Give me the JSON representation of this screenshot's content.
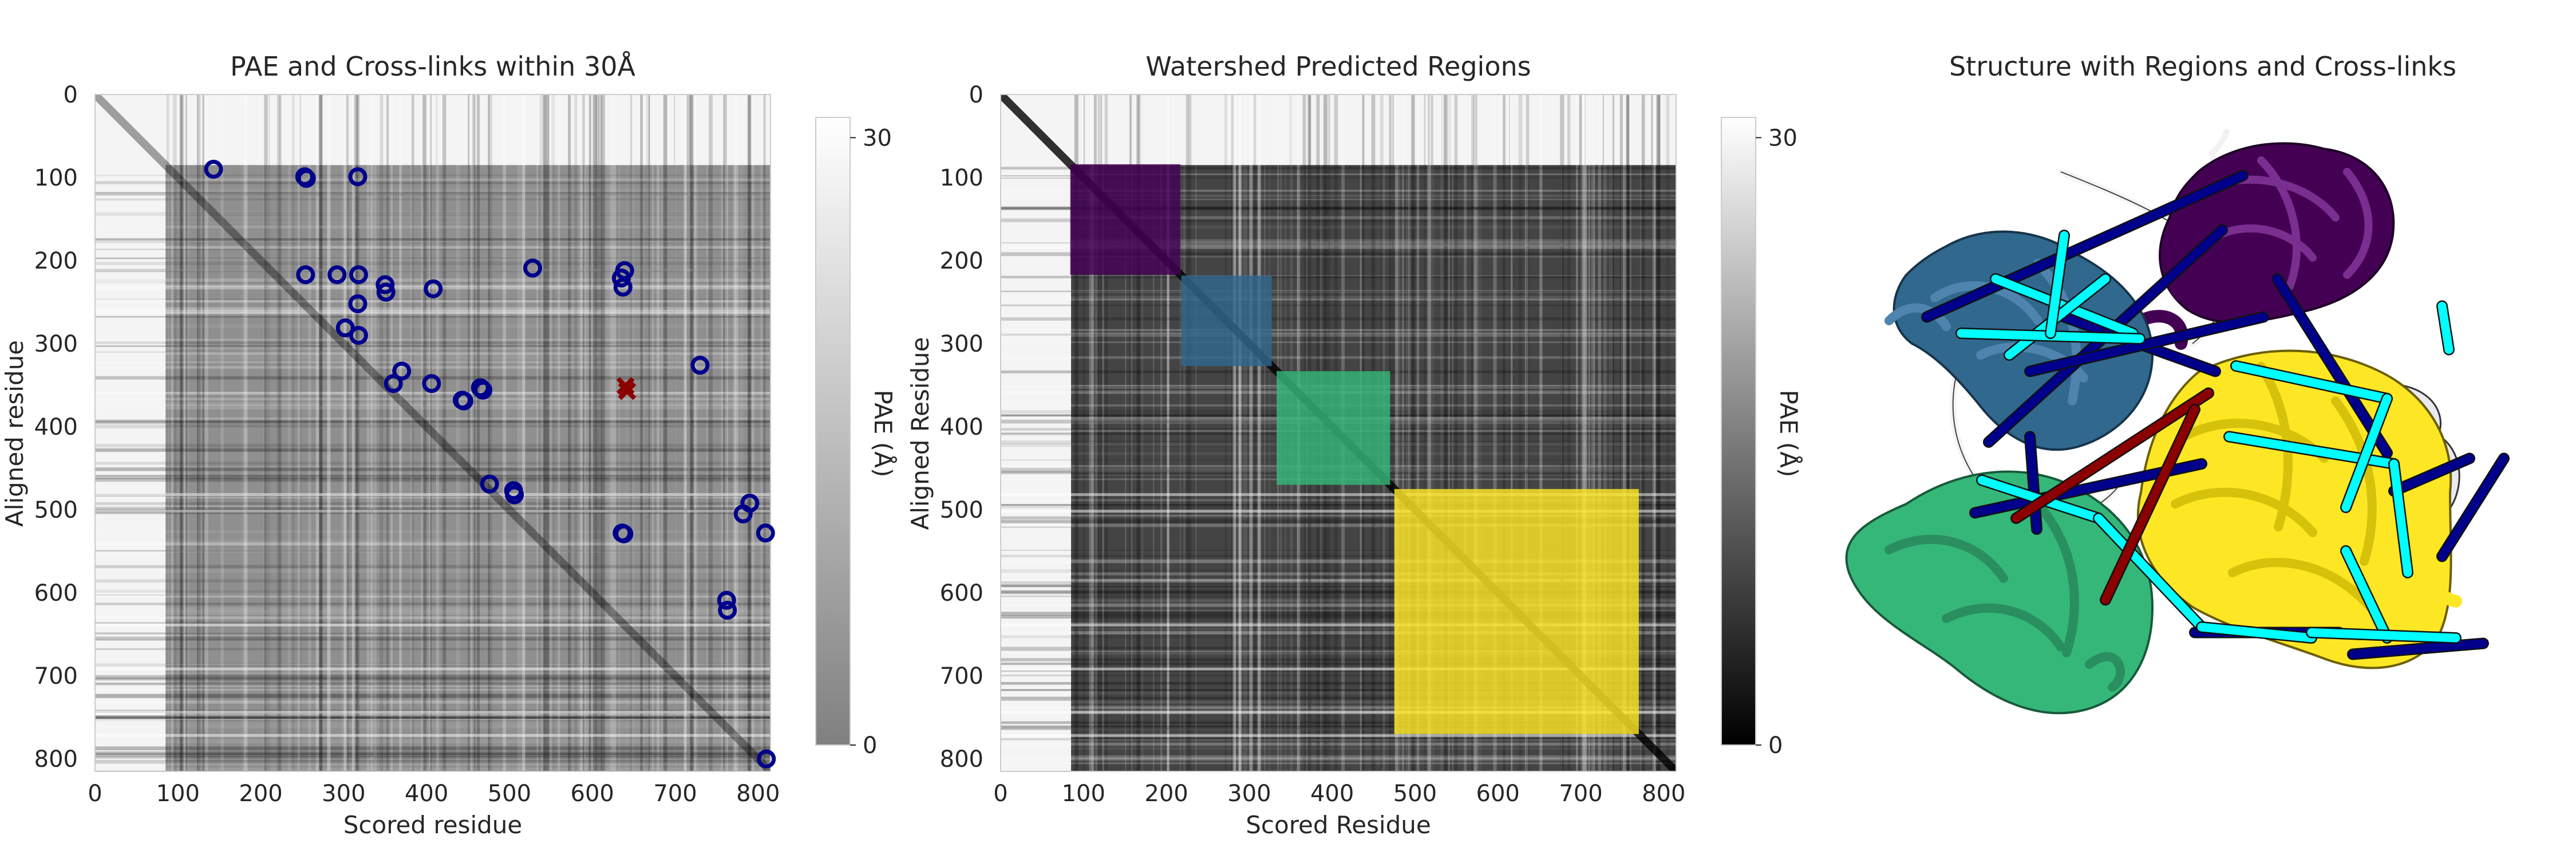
{
  "chart_data": [
    {
      "type": "heatmap",
      "title": "PAE and Cross-links within 30Å",
      "xlabel": "Scored residue",
      "ylabel": "Aligned residue",
      "xlim": [
        0,
        815
      ],
      "ylim": [
        815,
        0
      ],
      "xticks": [
        "0",
        "100",
        "200",
        "300",
        "400",
        "500",
        "600",
        "700",
        "800"
      ],
      "yticks": [
        "0",
        "100",
        "200",
        "300",
        "400",
        "500",
        "600",
        "700",
        "800"
      ],
      "colorbar": {
        "label": "PAE (Å)",
        "ticks": [
          "0",
          "30"
        ],
        "range": [
          0,
          31
        ],
        "cmap": "gray"
      },
      "grid": false,
      "domain_blocks": [
        {
          "start": 85,
          "end": 815,
          "level": 0.5
        }
      ],
      "satisfied_crosslinks": {
        "color": "#00008b",
        "marker": "circle",
        "points": [
          [
            143,
            90
          ],
          [
            253,
            99
          ],
          [
            255,
            101
          ],
          [
            317,
            99
          ],
          [
            254,
            217
          ],
          [
            292,
            217
          ],
          [
            318,
            217
          ],
          [
            317,
            252
          ],
          [
            302,
            281
          ],
          [
            318,
            290
          ],
          [
            350,
            229
          ],
          [
            351,
            238
          ],
          [
            360,
            348
          ],
          [
            370,
            333
          ],
          [
            408,
            234
          ],
          [
            406,
            348
          ],
          [
            443,
            368
          ],
          [
            445,
            369
          ],
          [
            465,
            353
          ],
          [
            468,
            356
          ],
          [
            476,
            469
          ],
          [
            505,
            477
          ],
          [
            506,
            482
          ],
          [
            528,
            209
          ],
          [
            639,
            212
          ],
          [
            635,
            221
          ],
          [
            637,
            232
          ],
          [
            636,
            528
          ],
          [
            638,
            529
          ],
          [
            730,
            326
          ],
          [
            762,
            609
          ],
          [
            763,
            621
          ],
          [
            790,
            492
          ],
          [
            782,
            505
          ],
          [
            809,
            528
          ],
          [
            810,
            800
          ]
        ]
      },
      "violated_crosslinks": {
        "color": "#8b0000",
        "marker": "x",
        "points": [
          [
            640,
            351
          ],
          [
            642,
            357
          ]
        ]
      }
    },
    {
      "type": "heatmap",
      "title": "Watershed Predicted Regions",
      "xlabel": "Scored Residue",
      "ylabel": "Aligned Residue",
      "xlim": [
        0,
        815
      ],
      "ylim": [
        815,
        0
      ],
      "xticks": [
        "0",
        "100",
        "200",
        "300",
        "400",
        "500",
        "600",
        "700",
        "800"
      ],
      "yticks": [
        "0",
        "100",
        "200",
        "300",
        "400",
        "500",
        "600",
        "700",
        "800"
      ],
      "colorbar": {
        "label": "PAE (Å)",
        "ticks": [
          "0",
          "30"
        ],
        "range": [
          0,
          31
        ],
        "cmap": "gray"
      },
      "grid": false,
      "regions": [
        {
          "start": 84,
          "end": 217,
          "color": "#440154"
        },
        {
          "start": 218,
          "end": 327,
          "color": "#31688e"
        },
        {
          "start": 333,
          "end": 470,
          "color": "#35b779"
        },
        {
          "start": 475,
          "end": 770,
          "color": "#fde725"
        }
      ]
    }
  ],
  "structure_panel": {
    "title": "Structure with Regions and Cross-links",
    "colors": {
      "region_1": "#440154",
      "region_2": "#31688e",
      "region_3": "#35b779",
      "region_4": "#fde725",
      "unassigned": "#f5f5f5",
      "crosslink_intra": "#00ffff",
      "crosslink_inter": "#00008b",
      "crosslink_violated": "#8b0000"
    },
    "crosslinks": [
      {
        "kind": "crosslink_inter",
        "a": [
          0.13,
          0.33
        ],
        "b": [
          0.59,
          0.07
        ]
      },
      {
        "kind": "crosslink_inter",
        "a": [
          0.33,
          0.33
        ],
        "b": [
          0.55,
          0.43
        ]
      },
      {
        "kind": "crosslink_inter",
        "a": [
          0.56,
          0.17
        ],
        "b": [
          0.22,
          0.56
        ]
      },
      {
        "kind": "crosslink_inter",
        "a": [
          0.62,
          0.33
        ],
        "b": [
          0.28,
          0.43
        ]
      },
      {
        "kind": "crosslink_inter",
        "a": [
          0.64,
          0.26
        ],
        "b": [
          0.8,
          0.58
        ]
      },
      {
        "kind": "crosslink_inter",
        "a": [
          0.2,
          0.69
        ],
        "b": [
          0.53,
          0.6
        ]
      },
      {
        "kind": "crosslink_inter",
        "a": [
          0.28,
          0.55
        ],
        "b": [
          0.29,
          0.72
        ]
      },
      {
        "kind": "crosslink_inter",
        "a": [
          0.81,
          0.65
        ],
        "b": [
          0.92,
          0.59
        ]
      },
      {
        "kind": "crosslink_inter",
        "a": [
          0.88,
          0.77
        ],
        "b": [
          0.97,
          0.59
        ]
      },
      {
        "kind": "crosslink_inter",
        "a": [
          0.75,
          0.95
        ],
        "b": [
          0.94,
          0.93
        ]
      },
      {
        "kind": "crosslink_inter",
        "a": [
          0.52,
          0.91
        ],
        "b": [
          0.73,
          0.91
        ]
      },
      {
        "kind": "crosslink_intra",
        "a": [
          0.23,
          0.26
        ],
        "b": [
          0.43,
          0.36
        ]
      },
      {
        "kind": "crosslink_intra",
        "a": [
          0.25,
          0.4
        ],
        "b": [
          0.39,
          0.26
        ]
      },
      {
        "kind": "crosslink_intra",
        "a": [
          0.18,
          0.36
        ],
        "b": [
          0.44,
          0.37
        ]
      },
      {
        "kind": "crosslink_intra",
        "a": [
          0.21,
          0.63
        ],
        "b": [
          0.38,
          0.7
        ]
      },
      {
        "kind": "crosslink_intra",
        "a": [
          0.38,
          0.7
        ],
        "b": [
          0.53,
          0.9
        ]
      },
      {
        "kind": "crosslink_intra",
        "a": [
          0.53,
          0.9
        ],
        "b": [
          0.69,
          0.92
        ]
      },
      {
        "kind": "crosslink_intra",
        "a": [
          0.57,
          0.55
        ],
        "b": [
          0.81,
          0.6
        ]
      },
      {
        "kind": "crosslink_intra",
        "a": [
          0.81,
          0.6
        ],
        "b": [
          0.83,
          0.8
        ]
      },
      {
        "kind": "crosslink_intra",
        "a": [
          0.74,
          0.76
        ],
        "b": [
          0.8,
          0.92
        ]
      },
      {
        "kind": "crosslink_intra",
        "a": [
          0.69,
          0.91
        ],
        "b": [
          0.9,
          0.92
        ]
      },
      {
        "kind": "crosslink_intra",
        "a": [
          0.58,
          0.42
        ],
        "b": [
          0.8,
          0.48
        ]
      },
      {
        "kind": "crosslink_intra",
        "a": [
          0.8,
          0.48
        ],
        "b": [
          0.74,
          0.68
        ]
      },
      {
        "kind": "crosslink_intra",
        "a": [
          0.88,
          0.31
        ],
        "b": [
          0.89,
          0.39
        ]
      },
      {
        "kind": "crosslink_intra",
        "a": [
          0.31,
          0.36
        ],
        "b": [
          0.33,
          0.18
        ]
      },
      {
        "kind": "crosslink_violated",
        "a": [
          0.26,
          0.7
        ],
        "b": [
          0.54,
          0.47
        ]
      },
      {
        "kind": "crosslink_violated",
        "a": [
          0.52,
          0.5
        ],
        "b": [
          0.39,
          0.85
        ]
      }
    ]
  }
}
